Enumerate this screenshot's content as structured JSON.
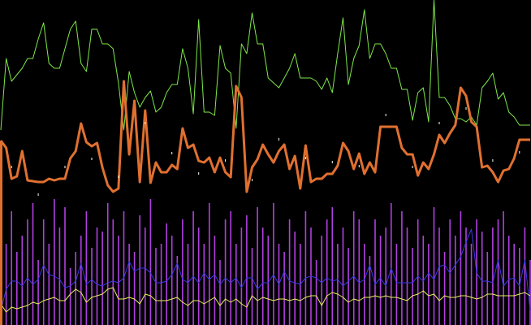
{
  "chart_data": [
    {
      "type": "line",
      "title": "",
      "xlabel": "",
      "ylabel": "",
      "grid": false,
      "legend": "none",
      "x": [
        0,
        1,
        2,
        3,
        4,
        5,
        6,
        7,
        8,
        9,
        10,
        11,
        12,
        13,
        14,
        15,
        16,
        17,
        18,
        19,
        20,
        21,
        22,
        23,
        24,
        25,
        26,
        27,
        28,
        29,
        30,
        31,
        32,
        33,
        34,
        35,
        36,
        37,
        38,
        39,
        40,
        41,
        42,
        43,
        44,
        45,
        46,
        47,
        48,
        49,
        50,
        51,
        52,
        53,
        54,
        55,
        56,
        57,
        58,
        59,
        60,
        61,
        62,
        63,
        64,
        65,
        66,
        67,
        68,
        69,
        70,
        71,
        72,
        73,
        74,
        75,
        76,
        77,
        78,
        79,
        80,
        81,
        82,
        83,
        84,
        85,
        86,
        87,
        88,
        89,
        90,
        91,
        92,
        93,
        94,
        95,
        96,
        97,
        98,
        99
      ],
      "ylim": [
        0,
        400
      ],
      "series": [
        {
          "color": "#7ee848",
          "values": [
            240,
            328,
            300,
            308,
            316,
            328,
            328,
            352,
            372,
            322,
            316,
            316,
            340,
            364,
            374,
            322,
            312,
            364,
            364,
            346,
            346,
            340,
            298,
            240,
            312,
            286,
            268,
            280,
            288,
            262,
            268,
            286,
            296,
            296,
            340,
            316,
            260,
            376,
            262,
            262,
            258,
            344,
            316,
            310,
            242,
            346,
            334,
            384,
            346,
            346,
            304,
            298,
            292,
            304,
            316,
            334,
            304,
            304,
            304,
            300,
            290,
            304,
            286,
            334,
            378,
            296,
            328,
            344,
            388,
            328,
            346,
            346,
            334,
            316,
            316,
            290,
            290,
            252,
            286,
            292,
            250,
            400,
            280,
            280,
            270,
            254,
            254,
            250,
            256,
            246,
            292,
            300,
            310,
            278,
            286,
            262,
            256,
            246,
            246,
            246
          ]
        },
        {
          "color": "#e07030",
          "values": [
            227,
            218,
            180,
            183,
            214,
            178,
            177,
            176,
            176,
            180,
            178,
            180,
            180,
            205,
            214,
            248,
            225,
            220,
            224,
            194,
            172,
            164,
            168,
            300,
            210,
            276,
            176,
            264,
            175,
            200,
            188,
            188,
            197,
            192,
            242,
            218,
            222,
            202,
            200,
            206,
            188,
            206,
            188,
            182,
            294,
            280,
            164,
            194,
            204,
            222,
            210,
            200,
            214,
            222,
            192,
            208,
            168,
            221,
            176,
            180,
            180,
            186,
            186,
            196,
            224,
            214,
            192,
            211,
            186,
            200,
            188,
            244,
            244,
            244,
            244,
            218,
            210,
            210,
            184,
            200,
            192,
            210,
            234,
            224,
            236,
            246,
            292,
            282,
            250,
            244,
            194,
            196,
            188,
            176,
            190,
            192,
            205,
            228,
            228,
            228
          ]
        },
        {
          "color": "#3a3ae8",
          "values": [
            18,
            44,
            54,
            54,
            48,
            58,
            50,
            56,
            74,
            62,
            60,
            56,
            46,
            48,
            54,
            76,
            50,
            56,
            50,
            48,
            52,
            54,
            52,
            58,
            78,
            66,
            70,
            70,
            64,
            52,
            52,
            54,
            62,
            76,
            56,
            52,
            60,
            52,
            64,
            56,
            62,
            50,
            58,
            52,
            58,
            46,
            58,
            58,
            44,
            52,
            52,
            62,
            50,
            66,
            54,
            52,
            50,
            58,
            60,
            58,
            52,
            58,
            54,
            56,
            48,
            54,
            60,
            52,
            56,
            74,
            50,
            58,
            48,
            70,
            52,
            52,
            52,
            52,
            60,
            54,
            64,
            56,
            72,
            74,
            64,
            74,
            84,
            102,
            118,
            64,
            54,
            54,
            52,
            80,
            48,
            56,
            58,
            48,
            80,
            18
          ]
        },
        {
          "color": "#e6f060",
          "values": [
            26,
            16,
            22,
            20,
            22,
            24,
            28,
            26,
            30,
            32,
            34,
            30,
            30,
            38,
            44,
            40,
            28,
            34,
            36,
            38,
            44,
            46,
            32,
            32,
            34,
            32,
            26,
            38,
            36,
            30,
            30,
            30,
            32,
            34,
            28,
            24,
            30,
            30,
            26,
            30,
            34,
            24,
            32,
            28,
            32,
            26,
            22,
            36,
            30,
            34,
            32,
            30,
            32,
            32,
            30,
            32,
            30,
            34,
            36,
            36,
            24,
            36,
            40,
            38,
            34,
            28,
            32,
            30,
            34,
            34,
            36,
            34,
            36,
            34,
            34,
            32,
            30,
            36,
            38,
            42,
            36,
            38,
            30,
            36,
            34,
            34,
            36,
            36,
            34,
            32,
            34,
            38,
            38,
            36,
            36,
            36,
            36,
            38,
            40,
            36
          ]
        }
      ]
    },
    {
      "type": "bar",
      "color": "#b040e0",
      "ylim": [
        0,
        400
      ],
      "x": [
        0,
        1,
        2,
        3,
        4,
        5,
        6,
        7,
        8,
        9,
        10,
        11,
        12,
        13,
        14,
        15,
        16,
        17,
        18,
        19,
        20,
        21,
        22,
        23,
        24,
        25,
        26,
        27,
        28,
        29,
        30,
        31,
        32,
        33,
        34,
        35,
        36,
        37,
        38,
        39,
        40,
        41,
        42,
        43,
        44,
        45,
        46,
        47,
        48,
        49,
        50,
        51,
        52,
        53,
        54,
        55,
        56,
        57,
        58,
        59,
        60,
        61,
        62,
        63,
        64,
        65,
        66,
        67,
        68,
        69,
        70,
        71,
        72,
        73,
        74,
        75,
        76,
        77,
        78,
        79,
        80,
        81,
        82,
        83,
        84,
        85,
        86,
        87,
        88,
        89,
        90,
        91,
        92,
        93,
        94,
        95,
        96,
        97,
        98,
        99
      ],
      "values": [
        120,
        100,
        140,
        90,
        110,
        130,
        150,
        80,
        130,
        100,
        155,
        120,
        145,
        70,
        90,
        110,
        140,
        95,
        120,
        115,
        150,
        130,
        110,
        140,
        100,
        90,
        135,
        120,
        155,
        95,
        100,
        125,
        110,
        85,
        130,
        100,
        140,
        120,
        100,
        150,
        110,
        80,
        130,
        140,
        100,
        120,
        135,
        95,
        145,
        120,
        110,
        150,
        100,
        90,
        130,
        115,
        100,
        140,
        120,
        80,
        110,
        130,
        145,
        100,
        120,
        95,
        140,
        130,
        100,
        85,
        130,
        110,
        120,
        150,
        100,
        140,
        120,
        95,
        130,
        110,
        100,
        145,
        120,
        90,
        130,
        110,
        140,
        120,
        100,
        130,
        115,
        90,
        120,
        130,
        140,
        110,
        100,
        95,
        120,
        80
      ]
    }
  ]
}
